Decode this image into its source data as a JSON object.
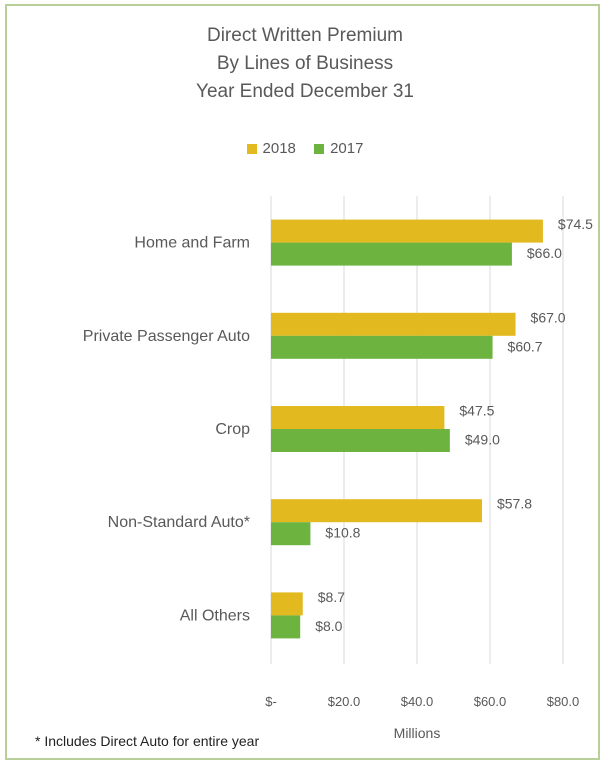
{
  "chart_data": {
    "type": "bar",
    "orientation": "horizontal",
    "title": [
      "Direct Written Premium",
      "By Lines of Business",
      "Year Ended December 31"
    ],
    "categories": [
      "Home and Farm",
      "Private Passenger Auto",
      "Crop",
      "Non-Standard Auto*",
      "All Others"
    ],
    "series": [
      {
        "name": "2018",
        "color": "#e2b91e",
        "values": [
          74.5,
          67.0,
          47.5,
          57.8,
          8.7
        ],
        "labels": [
          "$74.5",
          "$67.0",
          "$47.5",
          "$57.8",
          "$8.7"
        ]
      },
      {
        "name": "2017",
        "color": "#6db33f",
        "values": [
          66.0,
          60.7,
          49.0,
          10.8,
          8.0
        ],
        "labels": [
          "$66.0",
          "$60.7",
          "$49.0",
          "$10.8",
          "$8.0"
        ]
      }
    ],
    "xlim": [
      0,
      80
    ],
    "xticks": [
      0,
      20,
      40,
      60,
      80
    ],
    "xtick_labels": [
      "$-",
      "$20.0",
      "$40.0",
      "$60.0",
      "$80.0"
    ],
    "xlabel": "Millions",
    "ylabel": "",
    "grid": "vertical",
    "legend_position": "top"
  },
  "footnote": "* Includes Direct Auto for entire year"
}
